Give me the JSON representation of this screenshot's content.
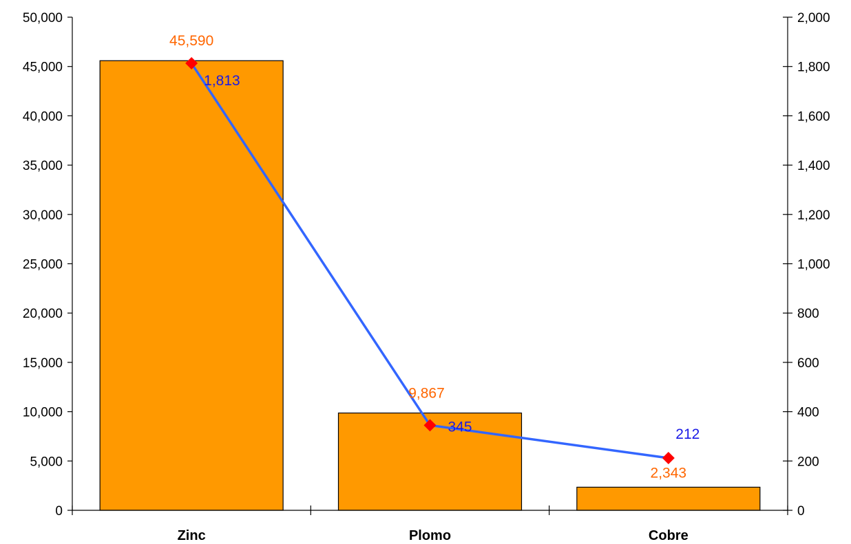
{
  "chart_data": {
    "type": "bar",
    "categories": [
      "Zinc",
      "Plomo",
      "Cobre"
    ],
    "series": [
      {
        "name": "",
        "type": "bar",
        "axis": "left",
        "values": [
          45590,
          9867,
          2343
        ],
        "value_labels": [
          "45,590",
          "9,867",
          "2,343"
        ]
      },
      {
        "name": "",
        "type": "line",
        "axis": "right",
        "values": [
          1813,
          345,
          212
        ],
        "value_labels": [
          "1,813",
          "345",
          "212"
        ]
      }
    ],
    "y_left": {
      "ylim": [
        0,
        50000
      ],
      "ticks": [
        0,
        5000,
        10000,
        15000,
        20000,
        25000,
        30000,
        35000,
        40000,
        45000,
        50000
      ],
      "tick_labels": [
        "0",
        "5,000",
        "10,000",
        "15,000",
        "20,000",
        "25,000",
        "30,000",
        "35,000",
        "40,000",
        "45,000",
        "50,000"
      ]
    },
    "y_right": {
      "ylim": [
        0,
        2000
      ],
      "ticks": [
        0,
        200,
        400,
        600,
        800,
        1000,
        1200,
        1400,
        1600,
        1800,
        2000
      ],
      "tick_labels": [
        "0",
        "200",
        "400",
        "600",
        "800",
        "1,000",
        "1,200",
        "1,400",
        "1,600",
        "1,800",
        "2,000"
      ]
    },
    "title": "",
    "xlabel": "",
    "ylabel": "",
    "legend": "none",
    "grid": false,
    "colors": {
      "bar_fill": "#FF9900",
      "bar_stroke": "#000000",
      "line": "#3366FF",
      "marker": "#FF0000",
      "bar_label": "#FF6600",
      "line_label": "#1A1AE6",
      "axis": "#000000"
    },
    "marker_shape": "diamond"
  }
}
